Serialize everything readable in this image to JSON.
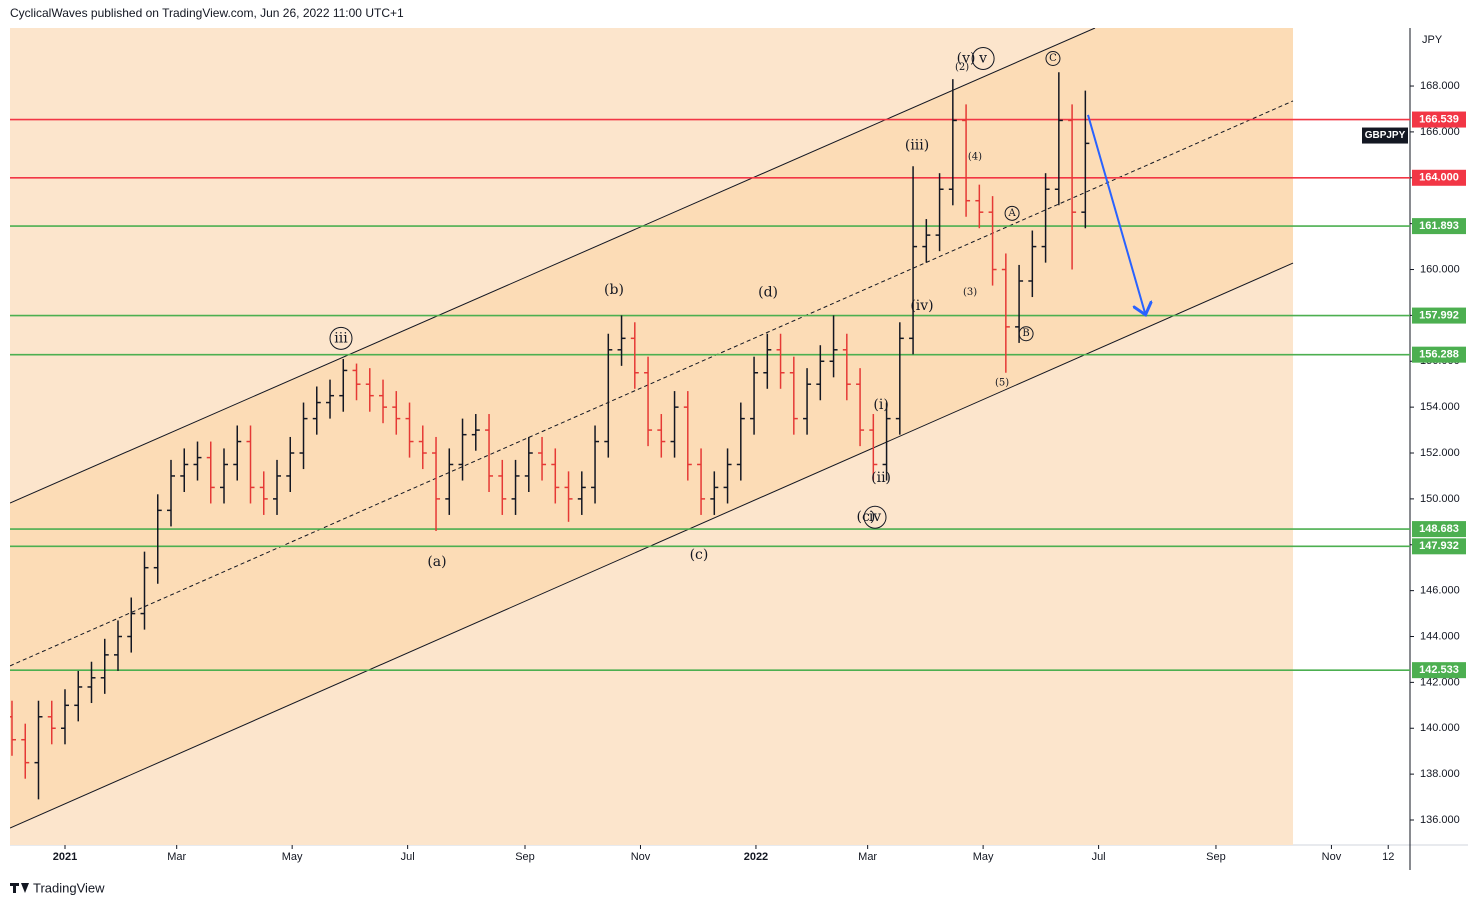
{
  "header": "CyclicalWaves published on TradingView.com, Jun 26, 2022 11:00 UTC+1",
  "footer": "TradingView",
  "chart_data": {
    "type": "ohlc",
    "symbol": "GBPJPY",
    "currency": "JPY",
    "up_color": "#131722",
    "down_color": "#e53935",
    "xlim": [
      -29.05,
      710.5
    ],
    "ylim": [
      134.91,
      170.53
    ],
    "xticks": [
      {
        "value": 0,
        "label": "2021"
      },
      {
        "value": 59,
        "label": "Mar"
      },
      {
        "value": 120,
        "label": "May"
      },
      {
        "value": 181,
        "label": "Jul"
      },
      {
        "value": 243,
        "label": "Sep"
      },
      {
        "value": 304,
        "label": "Nov"
      },
      {
        "value": 365,
        "label": "2022"
      },
      {
        "value": 424,
        "label": "Mar"
      },
      {
        "value": 485,
        "label": "May"
      },
      {
        "value": 546,
        "label": "Jul"
      },
      {
        "value": 608,
        "label": "Sep"
      },
      {
        "value": 669,
        "label": "Nov"
      },
      {
        "value": 699,
        "label": "12"
      }
    ],
    "yticks": [
      {
        "value": 136,
        "label": "136.000"
      },
      {
        "value": 138,
        "label": "138.000"
      },
      {
        "value": 140,
        "label": "140.000"
      },
      {
        "value": 142,
        "label": "142.000"
      },
      {
        "value": 144,
        "label": "144.000"
      },
      {
        "value": 146,
        "label": "146.000"
      },
      {
        "value": 148,
        "label": "148.000"
      },
      {
        "value": 150,
        "label": "150.000"
      },
      {
        "value": 152,
        "label": "152.000"
      },
      {
        "value": 154,
        "label": "154.000"
      },
      {
        "value": 156,
        "label": "156.000"
      },
      {
        "value": 158,
        "label": "158.000"
      },
      {
        "value": 160,
        "label": "160.000"
      },
      {
        "value": 162,
        "label": "162.000"
      },
      {
        "value": 164,
        "label": "164.000"
      },
      {
        "value": 166,
        "label": "166.000"
      },
      {
        "value": 168,
        "label": "168.000"
      }
    ],
    "x": [
      -28,
      -21,
      -14,
      -7,
      0,
      7,
      14,
      21,
      28,
      35,
      42,
      49,
      56,
      63,
      70,
      77,
      84,
      91,
      98,
      105,
      112,
      119,
      126,
      133,
      140,
      147,
      154,
      161,
      168,
      175,
      182,
      189,
      196,
      203,
      210,
      217,
      224,
      231,
      238,
      245,
      252,
      259,
      266,
      273,
      280,
      287,
      294,
      301,
      308,
      315,
      322,
      329,
      336,
      343,
      350,
      357,
      364,
      371,
      378,
      385,
      392,
      399,
      406,
      413,
      420,
      427,
      434,
      441,
      448,
      455,
      462,
      469,
      476,
      483,
      490,
      497,
      504,
      511,
      518,
      525,
      532,
      539
    ],
    "open": [
      140.5,
      139.5,
      138.5,
      140.5,
      140.0,
      141.0,
      141.8,
      142.2,
      143.2,
      144.0,
      145.0,
      147.0,
      149.5,
      151.0,
      151.5,
      151.8,
      150.5,
      151.5,
      152.5,
      150.5,
      150.0,
      151.0,
      152.0,
      153.5,
      154.2,
      154.5,
      155.6,
      155.0,
      154.5,
      154.0,
      153.5,
      152.5,
      152.0,
      150.0,
      151.5,
      152.8,
      153.0,
      151.0,
      150.0,
      151.0,
      152.0,
      151.5,
      150.5,
      150.0,
      150.5,
      152.5,
      156.5,
      157.0,
      155.5,
      153.0,
      152.5,
      154.0,
      151.5,
      150.0,
      150.5,
      151.5,
      153.5,
      155.5,
      156.5,
      155.5,
      153.5,
      155.0,
      156.0,
      156.5,
      155.0,
      153.0,
      151.5,
      153.5,
      157.0,
      161.0,
      161.5,
      163.5,
      166.5,
      163.0,
      162.5,
      160.0,
      157.5,
      159.5,
      161.0,
      163.5,
      166.5,
      162.5
    ],
    "high": [
      141.2,
      140.2,
      141.2,
      141.2,
      141.7,
      142.5,
      142.9,
      143.9,
      144.7,
      145.7,
      147.7,
      150.2,
      151.7,
      152.2,
      152.5,
      152.5,
      152.2,
      153.2,
      153.2,
      151.2,
      151.7,
      152.7,
      154.2,
      154.9,
      155.2,
      156.1,
      155.9,
      155.7,
      155.2,
      154.7,
      154.2,
      153.2,
      152.7,
      152.2,
      153.5,
      153.7,
      153.7,
      151.7,
      151.7,
      152.7,
      152.7,
      152.2,
      151.2,
      151.2,
      153.2,
      157.2,
      158.0,
      157.7,
      156.2,
      153.7,
      154.7,
      154.7,
      152.2,
      151.2,
      152.2,
      154.2,
      156.2,
      157.2,
      157.2,
      156.2,
      155.7,
      156.7,
      158.0,
      157.2,
      155.7,
      153.7,
      154.2,
      157.7,
      164.5,
      162.2,
      164.2,
      168.3,
      167.2,
      163.7,
      163.2,
      160.7,
      160.2,
      161.7,
      164.2,
      168.6,
      167.2,
      167.8
    ],
    "low": [
      138.8,
      137.8,
      136.9,
      139.3,
      139.3,
      140.3,
      141.1,
      141.5,
      142.5,
      143.3,
      144.3,
      146.3,
      148.8,
      150.3,
      150.8,
      149.8,
      149.8,
      150.8,
      149.8,
      149.3,
      149.3,
      150.3,
      151.3,
      152.8,
      153.5,
      153.8,
      154.3,
      153.8,
      153.3,
      152.8,
      151.8,
      151.3,
      148.6,
      149.3,
      150.8,
      152.1,
      150.3,
      149.3,
      149.3,
      150.3,
      150.8,
      149.8,
      149.0,
      149.3,
      149.8,
      151.8,
      155.8,
      154.8,
      152.3,
      151.8,
      151.8,
      150.8,
      149.3,
      149.3,
      149.8,
      150.8,
      152.8,
      154.8,
      154.8,
      152.8,
      152.8,
      154.3,
      155.3,
      154.3,
      152.3,
      150.8,
      150.8,
      152.8,
      156.3,
      160.3,
      160.8,
      162.8,
      162.3,
      161.8,
      159.3,
      155.5,
      156.8,
      158.8,
      160.3,
      162.8,
      160.0,
      161.8
    ],
    "close": [
      139.5,
      138.5,
      140.5,
      140.0,
      141.0,
      141.8,
      142.2,
      143.2,
      144.0,
      145.0,
      147.0,
      149.5,
      151.0,
      151.5,
      151.8,
      150.5,
      151.5,
      152.5,
      150.5,
      150.0,
      151.0,
      152.0,
      153.5,
      154.2,
      154.5,
      155.6,
      155.0,
      154.5,
      154.0,
      153.5,
      152.5,
      152.0,
      150.0,
      151.5,
      152.8,
      153.0,
      151.0,
      150.0,
      151.0,
      152.0,
      151.5,
      150.5,
      150.0,
      150.5,
      152.5,
      156.5,
      157.0,
      155.5,
      153.0,
      152.5,
      154.0,
      151.5,
      150.0,
      150.5,
      151.5,
      153.5,
      155.5,
      156.5,
      155.5,
      153.5,
      155.0,
      156.0,
      156.5,
      155.0,
      153.0,
      151.5,
      153.5,
      157.0,
      161.0,
      161.5,
      163.5,
      166.5,
      163.0,
      162.5,
      160.0,
      157.5,
      159.5,
      161.0,
      163.5,
      166.5,
      162.5,
      165.5
    ],
    "levels": [
      {
        "value": 166.539,
        "color": "#f23645"
      },
      {
        "value": {
          "value": 164,
          "label": "164.000"
        },
        "color": "#f23645"
      },
      {
        "value": 161.893,
        "color": "#4caf50"
      },
      {
        "value": 157.992,
        "color": "#4caf50"
      },
      {
        "value": 156.288,
        "color": "#4caf50"
      },
      {
        "value": 148.683,
        "color": "#4caf50"
      },
      {
        "value": 147.932,
        "color": "#4caf50"
      },
      {
        "value": 142.533,
        "color": "#4caf50"
      }
    ],
    "trendlines": [
      {
        "from": [
          -29.05,
          149.82
        ],
        "to": [
          544.1,
          170.53
        ],
        "dashed": false
      },
      {
        "from": [
          -29.05,
          135.65
        ],
        "to": [
          648.7,
          160.28
        ],
        "dashed": false
      },
      {
        "from": [
          -29.05,
          142.72
        ],
        "to": [
          648.7,
          167.35
        ],
        "dashed": true
      }
    ],
    "arrow": {
      "from": [
        540.4,
        166.74
      ],
      "to": [
        570.5,
        158.11
      ],
      "color": "#2962ff"
    },
    "annotations": [
      {
        "text": "iii",
        "x": 145.8,
        "y": 157.0,
        "circled": true
      },
      {
        "text": "(b)",
        "x": 290.0,
        "y": 159.1
      },
      {
        "text": "(d)",
        "x": 371.4,
        "y": 159.0
      },
      {
        "text": "(a)",
        "x": 196.5,
        "y": 147.25
      },
      {
        "text": "(c)",
        "x": 334.9,
        "y": 147.55
      },
      {
        "text": "(iii)",
        "x": 450.1,
        "y": 165.4
      },
      {
        "text": "(iv)",
        "x": 452.7,
        "y": 158.4
      },
      {
        "text": "(i)",
        "x": 431.1,
        "y": 154.1
      },
      {
        "text": "(ii)",
        "x": 431.1,
        "y": 150.9
      },
      {
        "text": "(c)",
        "x": 423.1,
        "y": 149.2
      },
      {
        "text": "iv",
        "x": 427.9,
        "y": 149.2,
        "circled": true
      },
      {
        "text": "(2)",
        "x": 473.9,
        "y": 168.8,
        "small": true
      },
      {
        "text": "(4)",
        "x": 480.7,
        "y": 164.9,
        "small": true
      },
      {
        "text": "(3)",
        "x": 478.1,
        "y": 159.0,
        "small": true
      },
      {
        "text": "(5)",
        "x": 495.0,
        "y": 155.05,
        "small": true
      },
      {
        "text": "(v)",
        "x": 476.0,
        "y": 169.2
      },
      {
        "text": "v",
        "x": 485.0,
        "y": 169.2,
        "circled": true
      },
      {
        "text": "A",
        "x": 500.3,
        "y": 162.45,
        "circled": true,
        "small": true
      },
      {
        "text": "B",
        "x": 507.7,
        "y": 157.2,
        "circled": true,
        "small": true
      },
      {
        "text": "C",
        "x": 521.9,
        "y": 169.2,
        "circled": true,
        "small": true
      }
    ]
  }
}
